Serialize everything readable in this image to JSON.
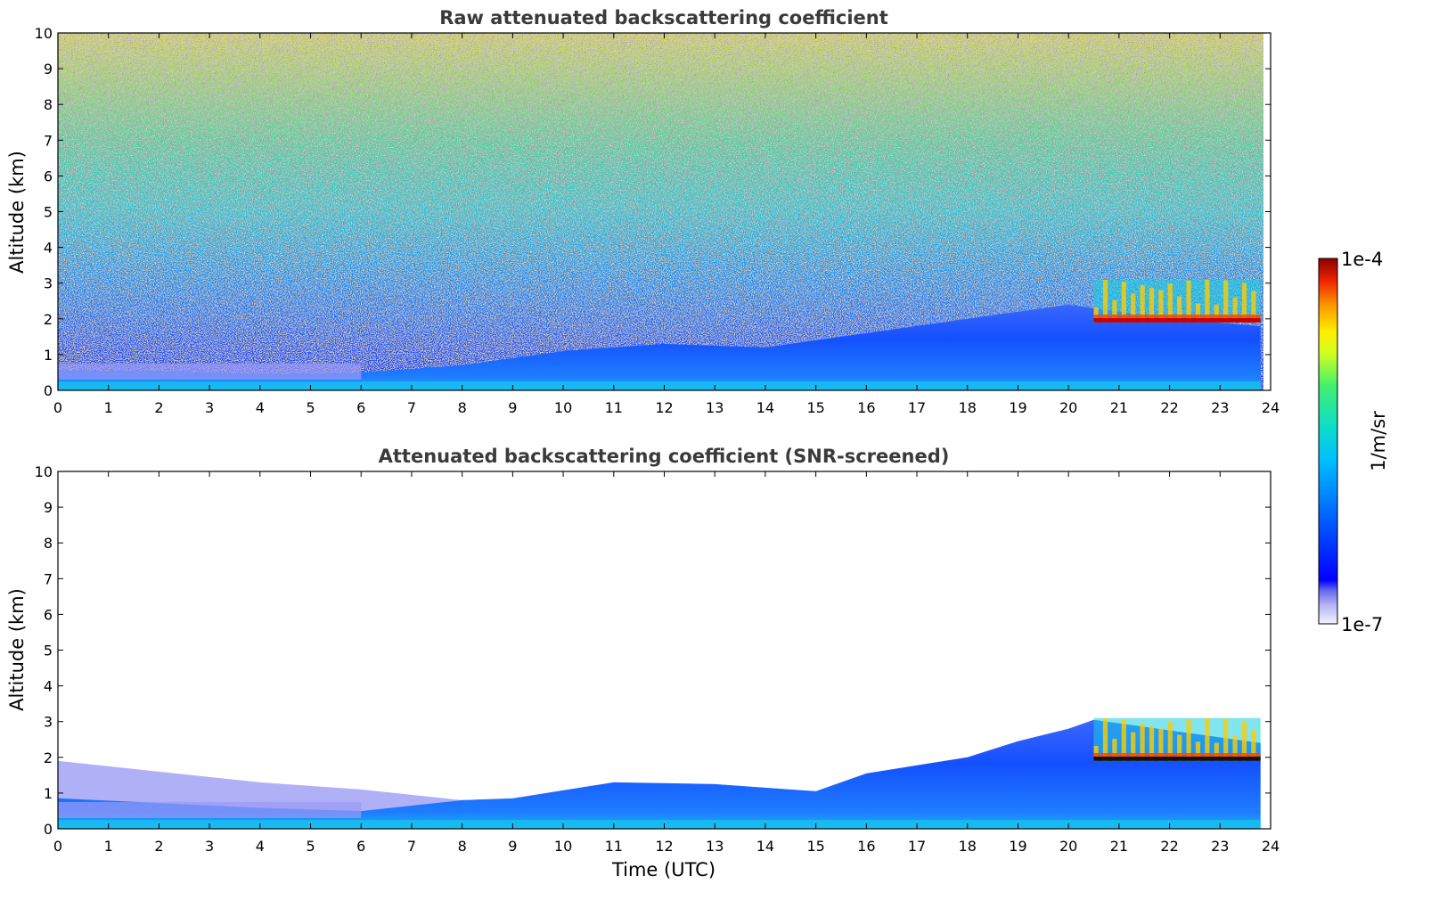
{
  "chart_data": [
    {
      "type": "heatmap",
      "title": "Raw attenuated backscattering coefficient",
      "xlabel": "",
      "ylabel": "Altitude (km)",
      "xlim": [
        0,
        24
      ],
      "ylim": [
        0,
        10
      ],
      "x_ticks": [
        "0",
        "1",
        "2",
        "3",
        "4",
        "5",
        "6",
        "7",
        "8",
        "9",
        "10",
        "11",
        "12",
        "13",
        "14",
        "15",
        "16",
        "17",
        "18",
        "19",
        "20",
        "21",
        "22",
        "23",
        "24"
      ],
      "y_ticks": [
        "0",
        "1",
        "2",
        "3",
        "4",
        "5",
        "6",
        "7",
        "8",
        "9",
        "10"
      ],
      "screened": false,
      "boundary_layer_top_km": [
        {
          "x": 0,
          "y": 0.55
        },
        {
          "x": 2,
          "y": 0.55
        },
        {
          "x": 4,
          "y": 0.45
        },
        {
          "x": 6,
          "y": 0.5
        },
        {
          "x": 8,
          "y": 0.7
        },
        {
          "x": 10,
          "y": 1.1
        },
        {
          "x": 12,
          "y": 1.3
        },
        {
          "x": 14,
          "y": 1.2
        },
        {
          "x": 16,
          "y": 1.6
        },
        {
          "x": 18,
          "y": 2.0
        },
        {
          "x": 20,
          "y": 2.4
        },
        {
          "x": 22,
          "y": 2.0
        },
        {
          "x": 23.8,
          "y": 1.8
        }
      ],
      "cloud_layer": {
        "x_start": 20.5,
        "x_end": 23.8,
        "base_km": 1.9,
        "top_km": 3.1
      }
    },
    {
      "type": "heatmap",
      "title": "Attenuated backscattering coefficient (SNR-screened)",
      "xlabel": "Time (UTC)",
      "ylabel": "Altitude (km)",
      "xlim": [
        0,
        24
      ],
      "ylim": [
        0,
        10
      ],
      "x_ticks": [
        "0",
        "1",
        "2",
        "3",
        "4",
        "5",
        "6",
        "7",
        "8",
        "9",
        "10",
        "11",
        "12",
        "13",
        "14",
        "15",
        "16",
        "17",
        "18",
        "19",
        "20",
        "21",
        "22",
        "23",
        "24"
      ],
      "y_ticks": [
        "0",
        "1",
        "2",
        "3",
        "4",
        "5",
        "6",
        "7",
        "8",
        "9",
        "10"
      ],
      "screened": true,
      "boundary_layer_top_km": [
        {
          "x": 0,
          "y": 1.9
        },
        {
          "x": 2,
          "y": 1.6
        },
        {
          "x": 4,
          "y": 1.3
        },
        {
          "x": 6,
          "y": 1.1
        },
        {
          "x": 8,
          "y": 0.8
        },
        {
          "x": 9,
          "y": 0.85
        },
        {
          "x": 11,
          "y": 1.3
        },
        {
          "x": 13,
          "y": 1.25
        },
        {
          "x": 15,
          "y": 1.05
        },
        {
          "x": 16,
          "y": 1.55
        },
        {
          "x": 18,
          "y": 2.0
        },
        {
          "x": 19,
          "y": 2.45
        },
        {
          "x": 20,
          "y": 2.8
        },
        {
          "x": 20.5,
          "y": 3.05
        },
        {
          "x": 23.8,
          "y": 2.4
        }
      ],
      "cloud_layer": {
        "x_start": 20.5,
        "x_end": 23.8,
        "base_km": 1.9,
        "top_km": 3.1
      }
    }
  ],
  "colorbar": {
    "label": "1/m/sr",
    "max_label": "1e-4",
    "min_label": "1e-7",
    "scale": "log",
    "range": [
      1e-07,
      0.0001
    ]
  }
}
